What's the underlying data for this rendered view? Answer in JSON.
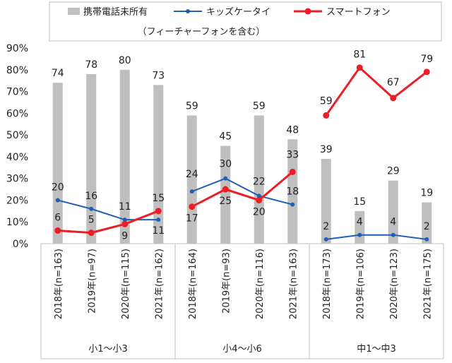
{
  "chart_data": {
    "type": "bar",
    "ylim": [
      0,
      90
    ],
    "yticks": [
      "0%",
      "10%",
      "20%",
      "30%",
      "40%",
      "50%",
      "60%",
      "70%",
      "80%",
      "90%"
    ],
    "groups": [
      "小1～小3",
      "小4～小6",
      "中1～中3"
    ],
    "categories": [
      "2018年(n=163)",
      "2019年(n=97)",
      "2020年(n=115)",
      "2021年(n=162)",
      "2018年(n=164)",
      "2019年(n=93)",
      "2020年(n=116)",
      "2021年(n=163)",
      "2018年(n=173)",
      "2019年(n=106)",
      "2020年(n=123)",
      "2021年(n=175)"
    ],
    "series": [
      {
        "name": "携帯電話未所有",
        "type": "bar",
        "color": "#bfbfbf",
        "values": [
          74,
          78,
          80,
          73,
          59,
          45,
          59,
          48,
          39,
          15,
          29,
          19
        ]
      },
      {
        "name": "キッズケータイ",
        "type": "line",
        "color": "#1f5fb4",
        "values": [
          20,
          16,
          11,
          11,
          24,
          30,
          22,
          18,
          2,
          4,
          4,
          2
        ]
      },
      {
        "name": "スマートフォン",
        "type": "line",
        "color": "#ee1c25",
        "values": [
          6,
          5,
          9,
          15,
          17,
          25,
          20,
          33,
          59,
          81,
          67,
          79
        ]
      }
    ],
    "legend_note": "（フィーチャーフォンを含む）",
    "legend_position": "top",
    "grid": false
  }
}
